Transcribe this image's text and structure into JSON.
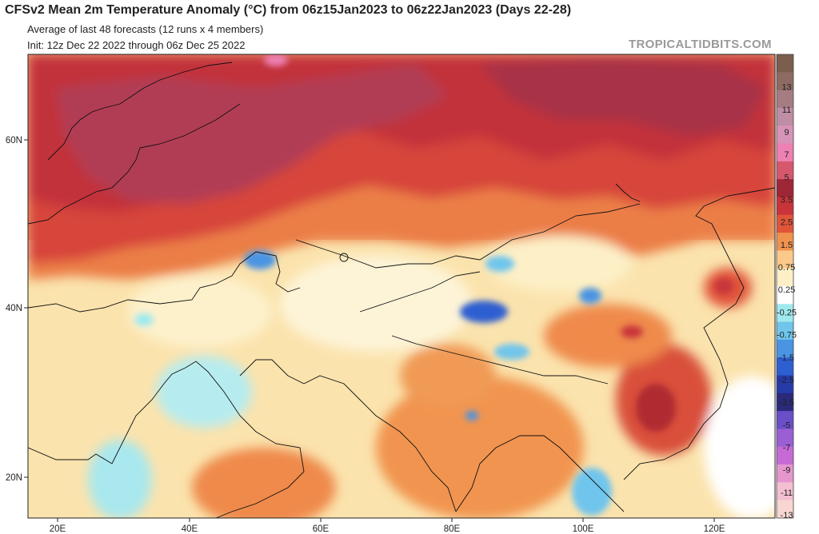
{
  "header": {
    "title": "CFSv2 Mean 2m Temperature Anomaly (°C) from 06z15Jan2023 to 06z22Jan2023 (Days 22-28)",
    "subtitle_1": "Average of last 48 forecasts (12 runs x 4 members)",
    "subtitle_2": "Init: 12z Dec 22 2022 through 06z Dec 25 2022"
  },
  "brand": {
    "text": "TROPICALTIDBITS.COM",
    "color": "#9a9a9a"
  },
  "map": {
    "region": "Europe, Middle East and Asia",
    "latitude_labels": [
      "60N",
      "40N",
      "20N"
    ],
    "longitude_labels": [
      "20E",
      "40E",
      "60E",
      "80E",
      "100E",
      "120E"
    ]
  },
  "colorbar": {
    "unit": "°C",
    "labels": [
      "13",
      "11",
      "9",
      "7",
      "5",
      "3.5",
      "2.5",
      "1.5",
      "0.75",
      "0.25",
      "-0.25",
      "-0.75",
      "-1.5",
      "-2.5",
      "-3.5",
      "-5",
      "-7",
      "-9",
      "-11",
      "-13"
    ],
    "colors": [
      "#7b5e4e",
      "#8e6b62",
      "#a67c83",
      "#be8ea4",
      "#d894b8",
      "#ee80b3",
      "#d7586c",
      "#9e2636",
      "#c8343a",
      "#e0543a",
      "#f0924e",
      "#fbc98a",
      "#fdf0c7",
      "#ffffff",
      "#9fe9ee",
      "#6fc5ec",
      "#4a94e3",
      "#2d5fd0",
      "#263aa8",
      "#2a2a7a",
      "#6a4fc9",
      "#9a5fd3",
      "#c66ad6",
      "#e597cd",
      "#f3bfd1",
      "#f7d6d2"
    ]
  }
}
